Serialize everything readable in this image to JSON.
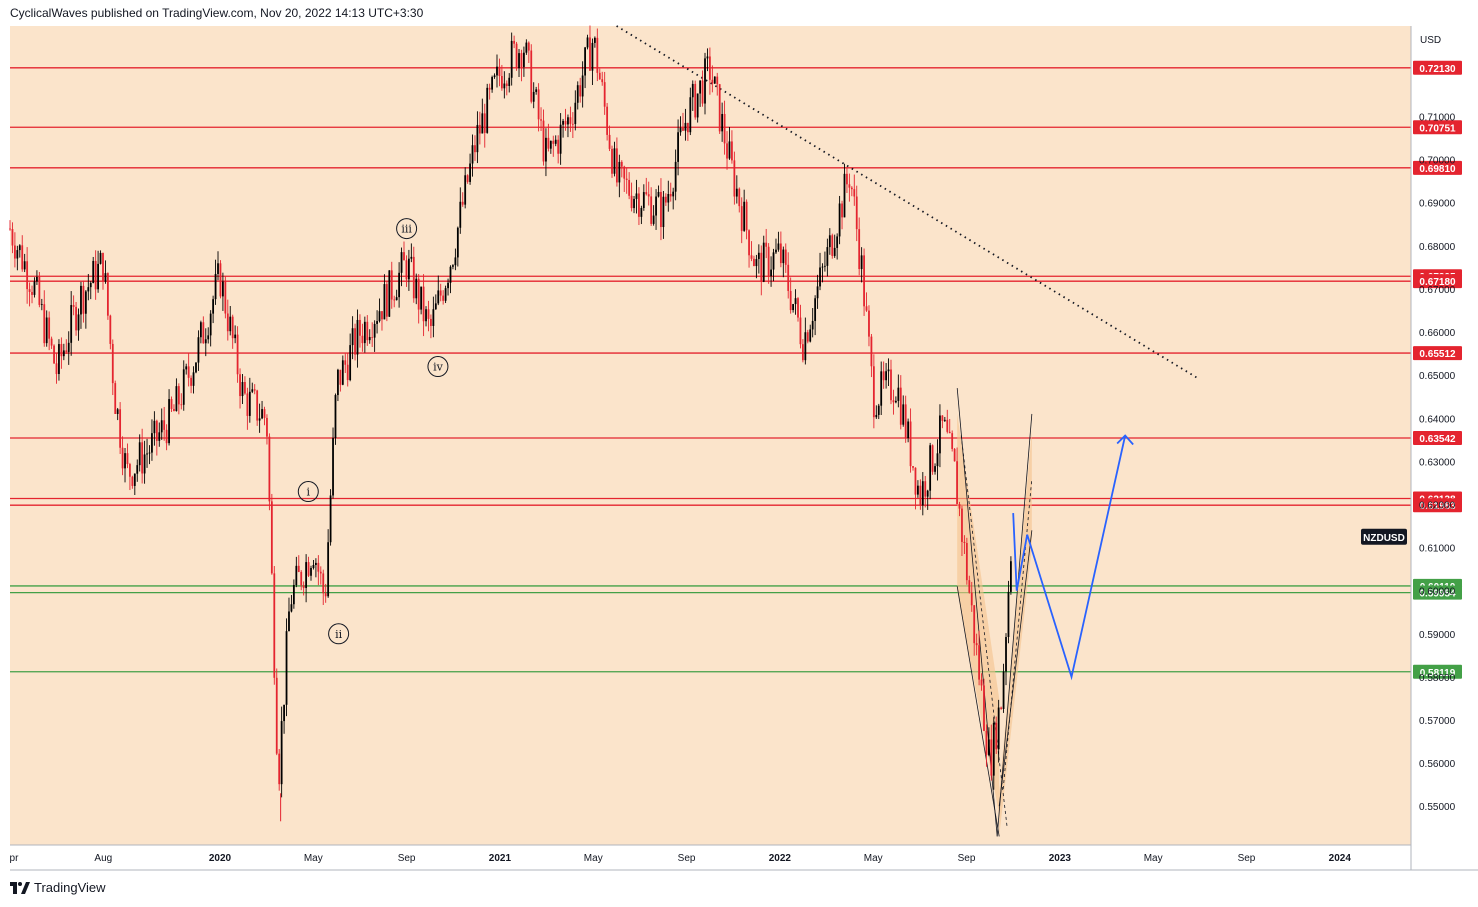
{
  "header": {
    "author": "CyclicalWaves",
    "text": "published on TradingView.com,",
    "timestamp": "Nov 20, 2022 14:13 UTC+3:30"
  },
  "footer": {
    "brand": "TradingView",
    "logo_icon": "tradingview-logo-icon"
  },
  "colors": {
    "background": "#fbe4cb",
    "resistance": "#e4242f",
    "support": "#43a047",
    "forecast": "#2962ff",
    "candle": "#000000",
    "symbol_badge": "#131722"
  },
  "chart_data": {
    "type": "candlestick",
    "symbol": "NZDUSD",
    "currency": "USD",
    "ylim": [
      0.541,
      0.731
    ],
    "y_ticks": [
      "0.55000",
      "0.56000",
      "0.57000",
      "0.58000",
      "0.59000",
      "0.60000",
      "0.61000",
      "0.62000",
      "0.63000",
      "0.64000",
      "0.65000",
      "0.66000",
      "0.67000",
      "0.68000",
      "0.69000",
      "0.70000",
      "0.71000"
    ],
    "x_labels": [
      "pr",
      "Aug",
      "2020",
      "May",
      "Sep",
      "2021",
      "May",
      "Sep",
      "2022",
      "May",
      "Sep",
      "2023",
      "May",
      "Sep",
      "2024"
    ],
    "resistance_levels": [
      "0.72130",
      "0.70751",
      "0.69810",
      "0.67295",
      "0.67180",
      "0.65512",
      "0.63542",
      "0.62138",
      "0.61983"
    ],
    "support_levels": [
      "0.60110",
      "0.59954",
      "0.58119"
    ],
    "price_path": [
      [
        "Apr 2019",
        0.684
      ],
      [
        "May 2019",
        0.671
      ],
      [
        "Jun 2019",
        0.651
      ],
      [
        "Jul 2019",
        0.668
      ],
      [
        "Aug 2019",
        0.676
      ],
      [
        "Aug 2019",
        0.645
      ],
      [
        "Sep 2019",
        0.627
      ],
      [
        "Oct 2019",
        0.633
      ],
      [
        "Nov 2019",
        0.641
      ],
      [
        "Dec 2019",
        0.655
      ],
      [
        "Jan 2020",
        0.673
      ],
      [
        "Feb 2020",
        0.645
      ],
      [
        "Mar 2020",
        0.64
      ],
      [
        "Mar 2020",
        0.556
      ],
      [
        "Apr 2020",
        0.598
      ],
      [
        "May 2020",
        0.61
      ],
      [
        "May 2020",
        0.598
      ],
      [
        "Jun 2020",
        0.648
      ],
      [
        "Jul 2020",
        0.66
      ],
      [
        "Aug 2020",
        0.667
      ],
      [
        "Sep 2020",
        0.676
      ],
      [
        "Oct 2020",
        0.66
      ],
      [
        "Nov 2020",
        0.679
      ],
      [
        "Dec 2020",
        0.705
      ],
      [
        "Jan 2021",
        0.72
      ],
      [
        "Feb 2021",
        0.727
      ],
      [
        "Mar 2021",
        0.7
      ],
      [
        "Apr 2021",
        0.71
      ],
      [
        "May 2021",
        0.728
      ],
      [
        "Jun 2021",
        0.695
      ],
      [
        "Aug 2021",
        0.688
      ],
      [
        "Sep 2021",
        0.71
      ],
      [
        "Oct 2021",
        0.721
      ],
      [
        "Nov 2021",
        0.696
      ],
      [
        "Dec 2021",
        0.675
      ],
      [
        "Jan 2022",
        0.678
      ],
      [
        "Feb 2022",
        0.658
      ],
      [
        "Mar 2022",
        0.677
      ],
      [
        "Apr 2022",
        0.697
      ],
      [
        "Apr 2022",
        0.675
      ],
      [
        "May 2022",
        0.645
      ],
      [
        "Jun 2022",
        0.648
      ],
      [
        "Jul 2022",
        0.622
      ],
      [
        "Aug 2022",
        0.638
      ],
      [
        "Aug 2022",
        0.627
      ],
      [
        "Sep 2022",
        0.605
      ],
      [
        "Oct 2022",
        0.56
      ],
      [
        "Oct 2022",
        0.575
      ],
      [
        "Nov 2022",
        0.618
      ]
    ],
    "wave_labels": [
      "i",
      "ii",
      "iii",
      "iv"
    ],
    "downtrend_line": "dotted",
    "forecast_path": [
      [
        "Nov 2022",
        0.618
      ],
      [
        "Nov 2022",
        0.6
      ],
      [
        "Dec 2022",
        0.613
      ],
      [
        "Feb 2023",
        0.58
      ],
      [
        "Apr 2023",
        0.636
      ]
    ]
  }
}
